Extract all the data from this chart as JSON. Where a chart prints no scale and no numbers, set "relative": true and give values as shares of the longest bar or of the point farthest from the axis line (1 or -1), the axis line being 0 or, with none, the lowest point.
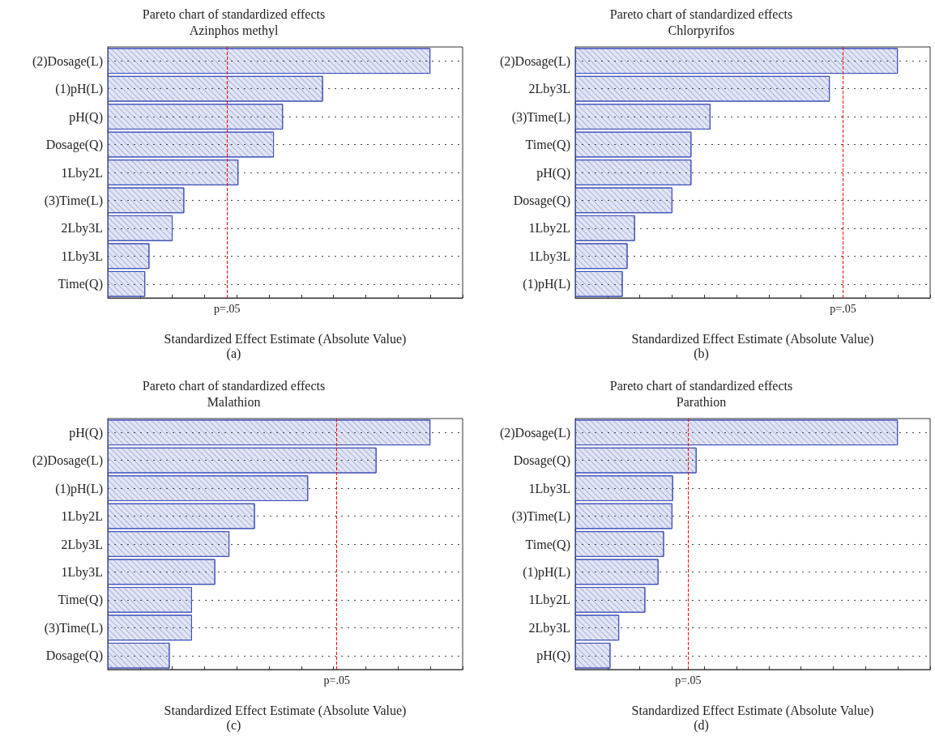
{
  "chart_data": [
    {
      "type": "bar",
      "orientation": "horizontal",
      "relative": true,
      "title": "Pareto chart of standardized effects",
      "subtitle": "Azinphos methyl",
      "xlabel": "Standardized Effect Estimate (Absolute Value)",
      "categories": [
        "(2)Dosage(L)",
        "(1)pH(L)",
        "pH(Q)",
        "Dosage(Q)",
        "1Lby2L",
        "(3)Time(L)",
        "2Lby3L",
        "1Lby3L",
        "Time(Q)"
      ],
      "series": [
        {
          "color": "#3b4fb8",
          "values": [
            1,
            0.667,
            0.543,
            0.515,
            0.405,
            0.237,
            0.201,
            0.129,
            0.116
          ]
        }
      ],
      "ref_lines": [
        {
          "axis": "x",
          "value": 0.369,
          "label": "p=.05",
          "color": "#ff0000",
          "line_style": "dashed"
        }
      ],
      "grid": "y",
      "annotations": [
        "(a)"
      ]
    },
    {
      "type": "bar",
      "orientation": "horizontal",
      "relative": true,
      "title": "Pareto chart of standardized effects",
      "subtitle": "Chlorpyrifos",
      "xlabel": "Standardized Effect Estimate (Absolute Value)",
      "categories": [
        "(2)Dosage(L)",
        "2Lby3L",
        "(3)Time(L)",
        "Time(Q)",
        "pH(Q)",
        "Dosage(Q)",
        "1Lby2L",
        "1Lby3L",
        "(1)pH(L)"
      ],
      "series": [
        {
          "color": "#3b4fb8",
          "values": [
            1,
            0.789,
            0.419,
            0.36,
            0.36,
            0.301,
            0.185,
            0.162,
            0.147
          ]
        }
      ],
      "ref_lines": [
        {
          "axis": "x",
          "value": 0.83,
          "label": "p=.05",
          "color": "#ff0000",
          "line_style": "dashed"
        }
      ],
      "grid": "y",
      "annotations": [
        "(b)"
      ]
    },
    {
      "type": "bar",
      "orientation": "horizontal",
      "relative": true,
      "title": "Pareto chart of standardized effects",
      "subtitle": "Malathion",
      "xlabel": "Standardized Effect Estimate (Absolute Value)",
      "categories": [
        "pH(Q)",
        "(2)Dosage(L)",
        "(1)pH(L)",
        "1Lby2L",
        "2Lby3L",
        "1Lby3L",
        "Time(Q)",
        "(3)Time(L)",
        "Dosage(Q)"
      ],
      "series": [
        {
          "color": "#3b4fb8",
          "values": [
            1,
            0.833,
            0.621,
            0.456,
            0.377,
            0.333,
            0.261,
            0.261,
            0.192
          ]
        }
      ],
      "ref_lines": [
        {
          "axis": "x",
          "value": 0.714,
          "label": "p=.05",
          "color": "#ff0000",
          "line_style": "dashed"
        }
      ],
      "grid": "y",
      "annotations": [
        "(c)"
      ]
    },
    {
      "type": "bar",
      "orientation": "horizontal",
      "relative": true,
      "title": "Pareto chart of standardized effects",
      "subtitle": "Parathion",
      "xlabel": "Standardized Effect Estimate (Absolute Value)",
      "categories": [
        "(2)Dosage(L)",
        "Dosage(Q)",
        "1Lby3L",
        "(3)Time(L)",
        "Time(Q)",
        "(1)pH(L)",
        "1Lby2L",
        "2Lby3L",
        "pH(Q)"
      ],
      "series": [
        {
          "color": "#3b4fb8",
          "values": [
            1,
            0.376,
            0.303,
            0.301,
            0.275,
            0.258,
            0.217,
            0.136,
            0.109
          ]
        }
      ],
      "ref_lines": [
        {
          "axis": "x",
          "value": 0.348,
          "label": "p=.05",
          "color": "#ff0000",
          "line_style": "dashed"
        }
      ],
      "grid": "y",
      "annotations": [
        "(d)"
      ]
    }
  ]
}
